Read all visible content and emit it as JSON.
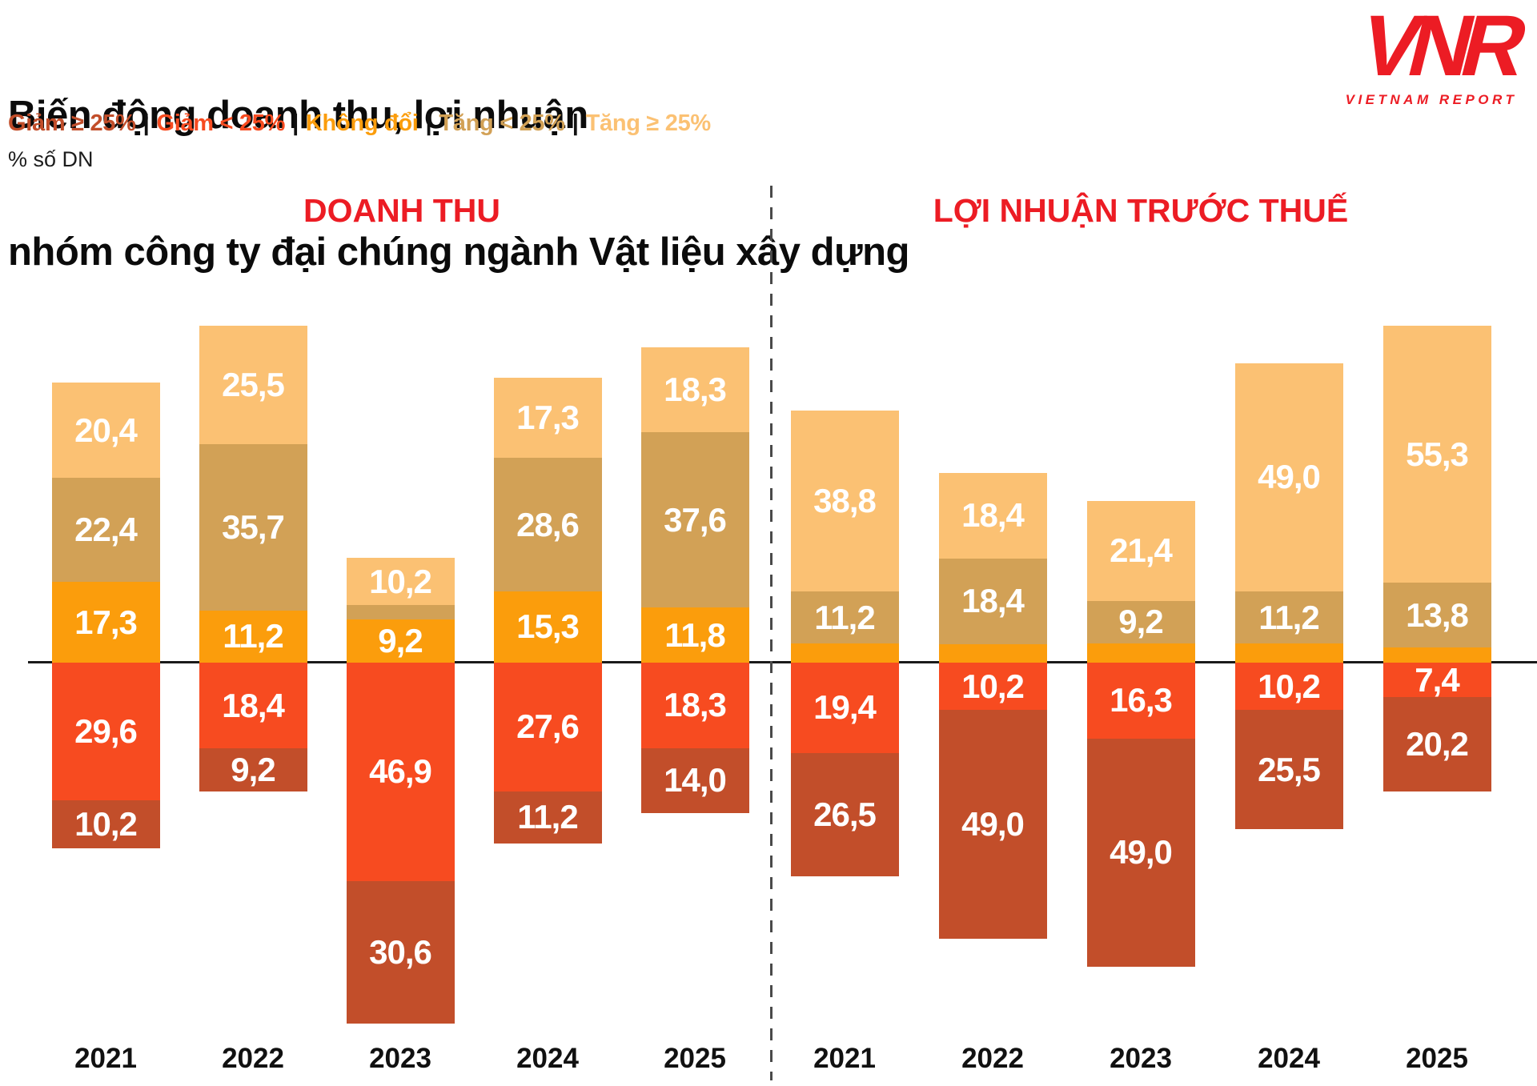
{
  "title": {
    "line1": "Biến động doanh thu, lợi nhuận",
    "line2": "nhóm công ty đại chúng ngành Vật liệu xây dựng"
  },
  "unit_label": "% số DN",
  "legend_separator": "|",
  "logo": {
    "acronym": "VNR",
    "text": "VIETNAM REPORT",
    "color": "#EC1C24"
  },
  "colors": {
    "accent_red": "#EC1C24",
    "axis": "#1a1a1a",
    "divider": "#4a4a4a",
    "label_text": "#ffffff"
  },
  "legend": [
    {
      "key": "giam_ge25",
      "label": "Giảm ≥ 25%",
      "color": "#C24E2A"
    },
    {
      "key": "giam_lt25",
      "label": "Giảm < 25%",
      "color": "#F74B20"
    },
    {
      "key": "khong_doi",
      "label": "Không đổi",
      "color": "#FB9D0C"
    },
    {
      "key": "tang_lt25",
      "label": "Tăng < 25%",
      "color": "#D2A156"
    },
    {
      "key": "tang_ge25",
      "label": "Tăng ≥ 25%",
      "color": "#FBC173"
    }
  ],
  "chart_data": {
    "type": "bar",
    "variant": "diverging-stacked",
    "unit": "% số DN",
    "grid": false,
    "legend_position": "top",
    "value_format": "comma-decimal",
    "panels": [
      {
        "title": "DOANH THU",
        "categories": [
          "2021",
          "2022",
          "2023",
          "2024",
          "2025"
        ],
        "bars": [
          {
            "year": "2021",
            "up": [
              {
                "key": "tang_ge25",
                "value": 20.4,
                "label": "20,4"
              },
              {
                "key": "tang_lt25",
                "value": 22.4,
                "label": "22,4"
              },
              {
                "key": "khong_doi",
                "value": 17.3,
                "label": "17,3"
              }
            ],
            "down": [
              {
                "key": "giam_lt25",
                "value": 29.6,
                "label": "29,6"
              },
              {
                "key": "giam_ge25",
                "value": 10.2,
                "label": "10,2"
              }
            ]
          },
          {
            "year": "2022",
            "up": [
              {
                "key": "tang_ge25",
                "value": 25.5,
                "label": "25,5"
              },
              {
                "key": "tang_lt25",
                "value": 35.7,
                "label": "35,7"
              },
              {
                "key": "khong_doi",
                "value": 11.2,
                "label": "11,2"
              }
            ],
            "down": [
              {
                "key": "giam_lt25",
                "value": 18.4,
                "label": "18,4"
              },
              {
                "key": "giam_ge25",
                "value": 9.2,
                "label": "9,2"
              }
            ]
          },
          {
            "year": "2023",
            "up": [
              {
                "key": "tang_ge25",
                "value": 10.2,
                "label": "10,2"
              },
              {
                "key": "tang_lt25",
                "value": 3.1,
                "label": null
              },
              {
                "key": "khong_doi",
                "value": 9.2,
                "label": "9,2"
              }
            ],
            "down": [
              {
                "key": "giam_lt25",
                "value": 46.9,
                "label": "46,9"
              },
              {
                "key": "giam_ge25",
                "value": 30.6,
                "label": "30,6"
              }
            ]
          },
          {
            "year": "2024",
            "up": [
              {
                "key": "tang_ge25",
                "value": 17.3,
                "label": "17,3"
              },
              {
                "key": "tang_lt25",
                "value": 28.6,
                "label": "28,6"
              },
              {
                "key": "khong_doi",
                "value": 15.3,
                "label": "15,3"
              }
            ],
            "down": [
              {
                "key": "giam_lt25",
                "value": 27.6,
                "label": "27,6"
              },
              {
                "key": "giam_ge25",
                "value": 11.2,
                "label": "11,2"
              }
            ]
          },
          {
            "year": "2025",
            "up": [
              {
                "key": "tang_ge25",
                "value": 18.3,
                "label": "18,3"
              },
              {
                "key": "tang_lt25",
                "value": 37.6,
                "label": "37,6"
              },
              {
                "key": "khong_doi",
                "value": 11.8,
                "label": "11,8"
              }
            ],
            "down": [
              {
                "key": "giam_lt25",
                "value": 18.3,
                "label": "18,3"
              },
              {
                "key": "giam_ge25",
                "value": 14.0,
                "label": "14,0"
              }
            ]
          }
        ]
      },
      {
        "title": "LỢI NHUẬN TRƯỚC THUẾ",
        "categories": [
          "2021",
          "2022",
          "2023",
          "2024",
          "2025"
        ],
        "bars": [
          {
            "year": "2021",
            "up": [
              {
                "key": "tang_ge25",
                "value": 38.8,
                "label": "38,8"
              },
              {
                "key": "tang_lt25",
                "value": 11.2,
                "label": "11,2"
              },
              {
                "key": "khong_doi",
                "value": 4.1,
                "label": null
              }
            ],
            "down": [
              {
                "key": "giam_lt25",
                "value": 19.4,
                "label": "19,4"
              },
              {
                "key": "giam_ge25",
                "value": 26.5,
                "label": "26,5"
              }
            ]
          },
          {
            "year": "2022",
            "up": [
              {
                "key": "tang_ge25",
                "value": 18.4,
                "label": "18,4"
              },
              {
                "key": "tang_lt25",
                "value": 18.4,
                "label": "18,4"
              },
              {
                "key": "khong_doi",
                "value": 4.0,
                "label": null
              }
            ],
            "down": [
              {
                "key": "giam_lt25",
                "value": 10.2,
                "label": "10,2"
              },
              {
                "key": "giam_ge25",
                "value": 49.0,
                "label": "49,0"
              }
            ]
          },
          {
            "year": "2023",
            "up": [
              {
                "key": "tang_ge25",
                "value": 21.4,
                "label": "21,4"
              },
              {
                "key": "tang_lt25",
                "value": 9.2,
                "label": "9,2"
              },
              {
                "key": "khong_doi",
                "value": 4.1,
                "label": null
              }
            ],
            "down": [
              {
                "key": "giam_lt25",
                "value": 16.3,
                "label": "16,3"
              },
              {
                "key": "giam_ge25",
                "value": 49.0,
                "label": "49,0"
              }
            ]
          },
          {
            "year": "2024",
            "up": [
              {
                "key": "tang_ge25",
                "value": 49.0,
                "label": "49,0"
              },
              {
                "key": "tang_lt25",
                "value": 11.2,
                "label": "11,2"
              },
              {
                "key": "khong_doi",
                "value": 4.1,
                "label": null
              }
            ],
            "down": [
              {
                "key": "giam_lt25",
                "value": 10.2,
                "label": "10,2"
              },
              {
                "key": "giam_ge25",
                "value": 25.5,
                "label": "25,5"
              }
            ]
          },
          {
            "year": "2025",
            "up": [
              {
                "key": "tang_ge25",
                "value": 55.3,
                "label": "55,3"
              },
              {
                "key": "tang_lt25",
                "value": 13.8,
                "label": "13,8"
              },
              {
                "key": "khong_doi",
                "value": 3.3,
                "label": null
              }
            ],
            "down": [
              {
                "key": "giam_lt25",
                "value": 7.4,
                "label": "7,4"
              },
              {
                "key": "giam_ge25",
                "value": 20.2,
                "label": "20,2"
              }
            ]
          }
        ]
      }
    ]
  }
}
